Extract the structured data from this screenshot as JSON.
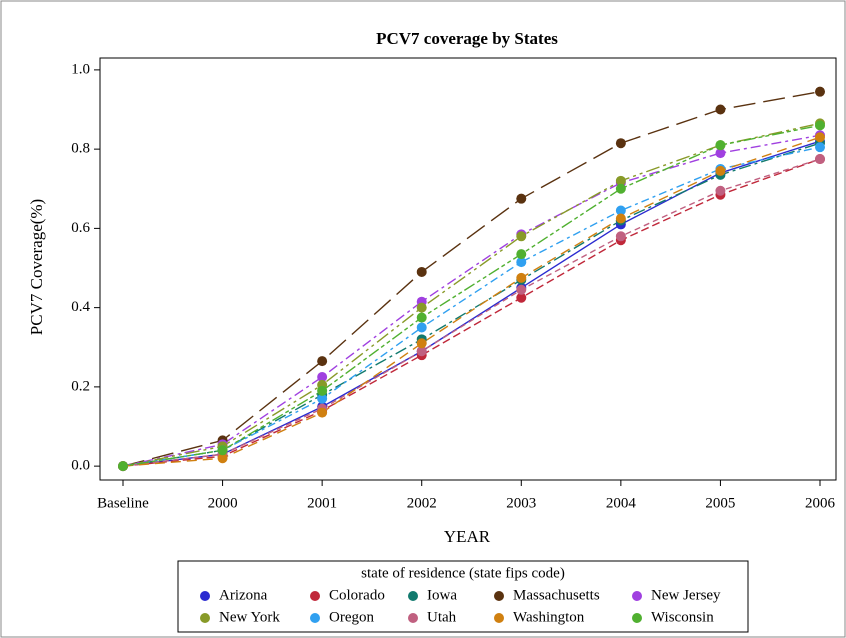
{
  "chart_data": {
    "type": "line",
    "title": "PCV7 coverage by States",
    "x_label": "YEAR",
    "y_label": "PCV7 Coverage(%)",
    "categories": [
      "Baseline",
      "2000",
      "2001",
      "2002",
      "2003",
      "2004",
      "2005",
      "2006"
    ],
    "ylim": [
      -0.035,
      1.03
    ],
    "yticks": [
      {
        "value": 0,
        "label": "0.0"
      },
      {
        "value": 0.2,
        "label": "0.2"
      },
      {
        "value": 0.4,
        "label": "0.4"
      },
      {
        "value": 0.6,
        "label": "0.6"
      },
      {
        "value": 0.8,
        "label": "0.8"
      },
      {
        "value": 1,
        "label": "1.0"
      }
    ],
    "legend_title": "state of residence (state fips code)",
    "legend_position": "bottom",
    "series": [
      {
        "name": "Arizona",
        "color": "#2b2bd0",
        "values": [
          0,
          0.03,
          0.15,
          0.29,
          0.45,
          0.61,
          0.74,
          0.82
        ]
      },
      {
        "name": "Colorado",
        "color": "#c0283a",
        "values": [
          0,
          0.025,
          0.14,
          0.28,
          0.425,
          0.57,
          0.685,
          0.775
        ]
      },
      {
        "name": "Iowa",
        "color": "#127a6e",
        "values": [
          0,
          0.04,
          0.18,
          0.32,
          0.47,
          0.62,
          0.735,
          0.815
        ]
      },
      {
        "name": "Massachusetts",
        "color": "#5a3210",
        "values": [
          0,
          0.065,
          0.265,
          0.49,
          0.675,
          0.815,
          0.9,
          0.945
        ]
      },
      {
        "name": "New Jersey",
        "color": "#a040e0",
        "values": [
          0,
          0.055,
          0.225,
          0.415,
          0.585,
          0.715,
          0.79,
          0.835
        ]
      },
      {
        "name": "New York",
        "color": "#889a28",
        "values": [
          0,
          0.05,
          0.205,
          0.4,
          0.58,
          0.72,
          0.81,
          0.865
        ]
      },
      {
        "name": "Oregon",
        "color": "#30a0f0",
        "values": [
          0,
          0.04,
          0.17,
          0.35,
          0.515,
          0.645,
          0.75,
          0.805
        ]
      },
      {
        "name": "Utah",
        "color": "#c06080",
        "values": [
          0,
          0.03,
          0.145,
          0.29,
          0.445,
          0.58,
          0.695,
          0.775
        ]
      },
      {
        "name": "Washington",
        "color": "#d08010",
        "values": [
          0,
          0.02,
          0.135,
          0.31,
          0.475,
          0.625,
          0.745,
          0.83
        ]
      },
      {
        "name": "Wisconsin",
        "color": "#50b030",
        "values": [
          0,
          0.04,
          0.19,
          0.375,
          0.535,
          0.7,
          0.81,
          0.86
        ]
      }
    ]
  }
}
